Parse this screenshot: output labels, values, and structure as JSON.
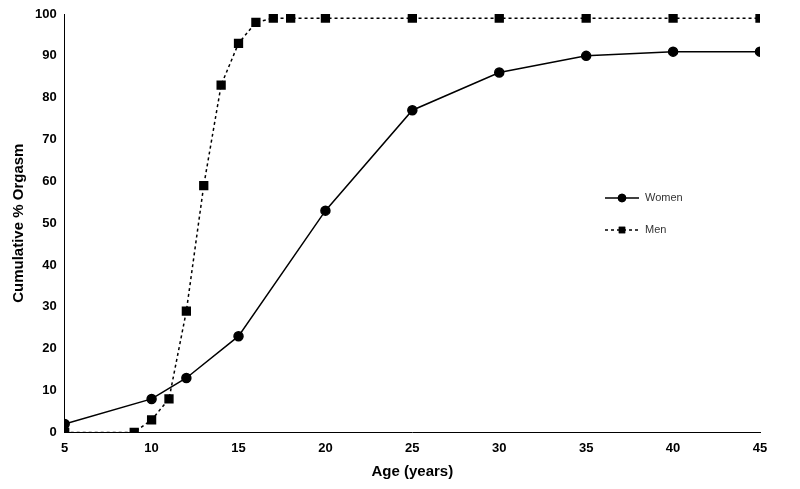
{
  "chart_data": {
    "type": "line",
    "x_label": "Age (years)",
    "y_label": "Cumulative % Orgasm",
    "xlim": [
      5,
      45
    ],
    "xticks": [
      5,
      10,
      15,
      20,
      25,
      30,
      35,
      40,
      45
    ],
    "ylim": [
      0,
      100
    ],
    "yticks": [
      0,
      10,
      20,
      30,
      40,
      50,
      60,
      70,
      80,
      90,
      100
    ],
    "grid": false,
    "legend": "right",
    "series": [
      {
        "name": "Women",
        "color": "#000000",
        "marker": "circle",
        "line_style": "solid",
        "x": [
          5,
          10,
          12,
          15,
          20,
          25,
          30,
          35,
          40,
          45
        ],
        "values": [
          2,
          8,
          13,
          23,
          53,
          77,
          86,
          90,
          91,
          91
        ]
      },
      {
        "name": "Men",
        "color": "#000000",
        "marker": "square",
        "line_style": "dotted",
        "x": [
          5,
          9,
          10,
          11,
          12,
          13,
          14,
          15,
          16,
          17,
          18,
          20,
          25,
          30,
          35,
          40,
          45
        ],
        "values": [
          0,
          0,
          3,
          8,
          29,
          59,
          83,
          93,
          98,
          99,
          99,
          99,
          99,
          99,
          99,
          99,
          99
        ]
      }
    ]
  }
}
